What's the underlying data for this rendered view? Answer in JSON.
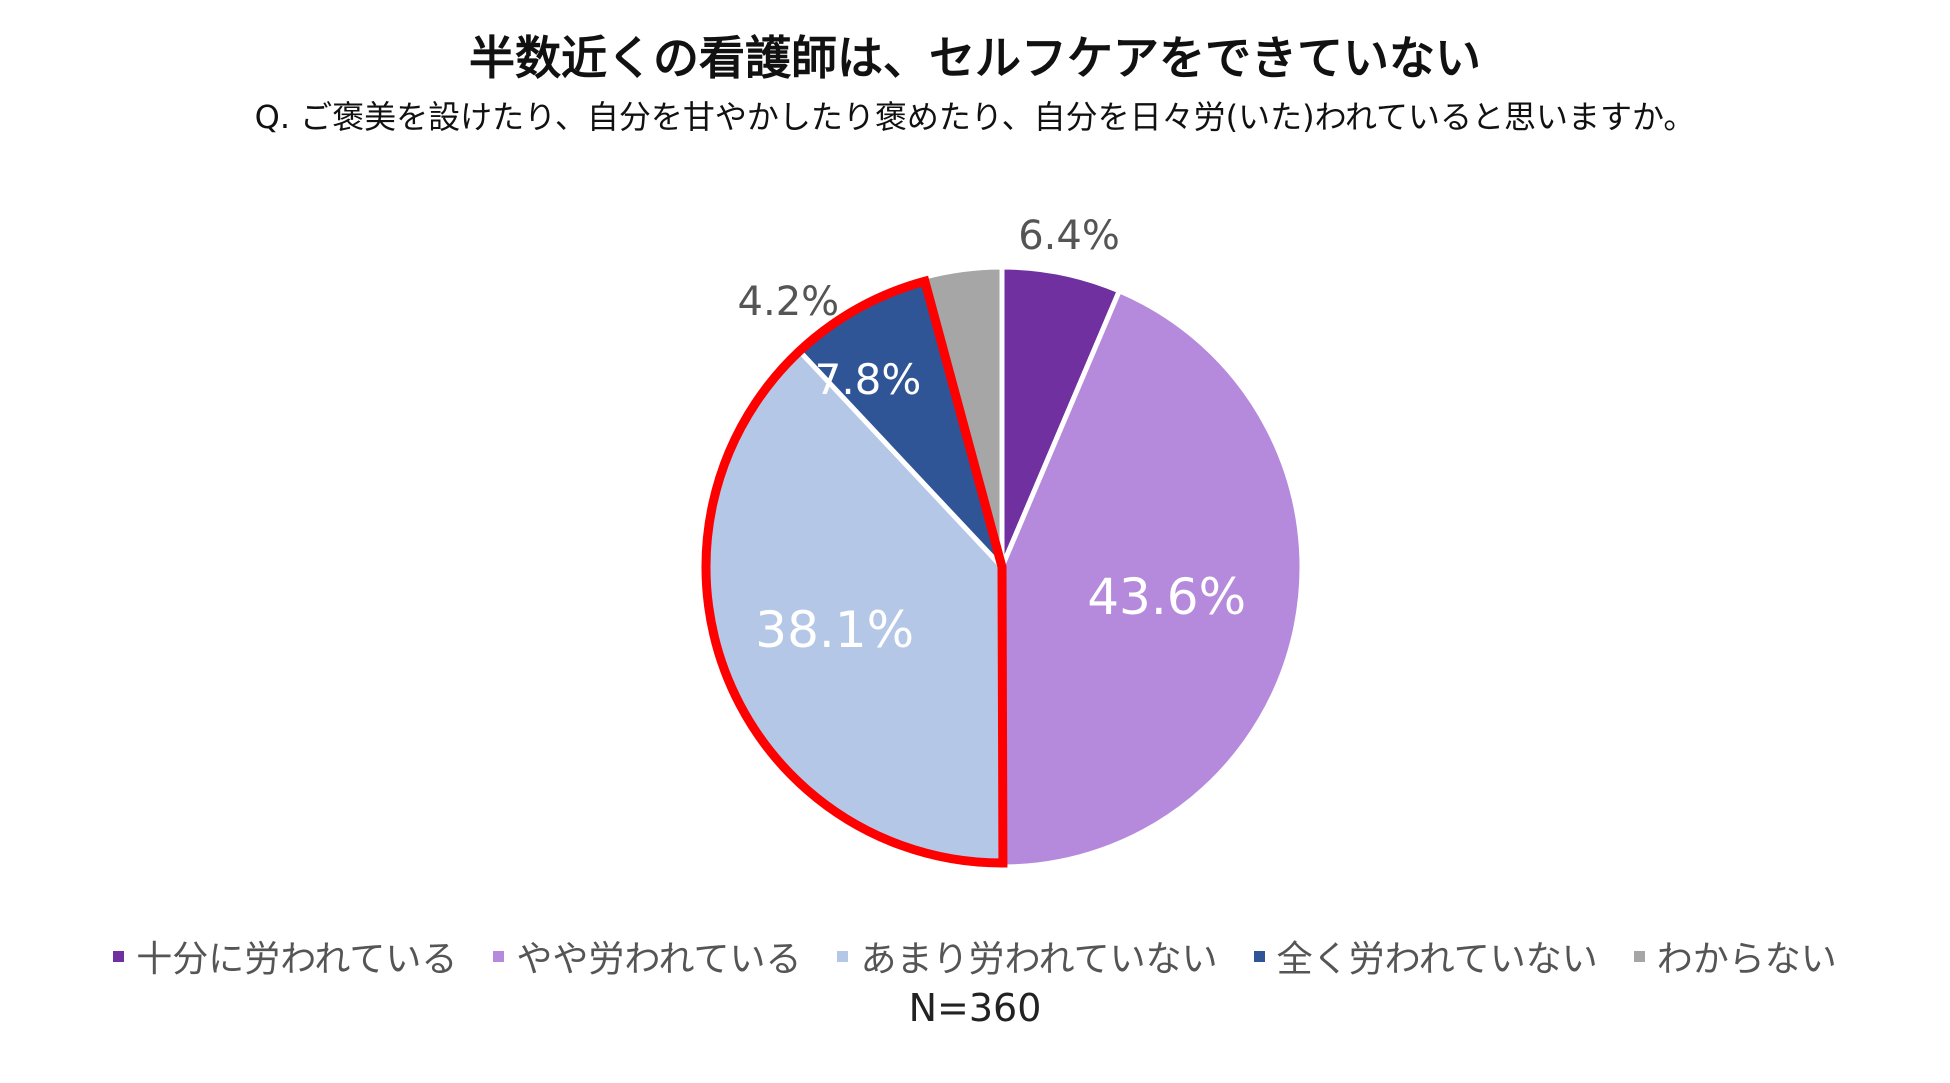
{
  "chart_data": {
    "type": "pie",
    "title": "半数近くの看護師は、セルフケアをできていない",
    "subtitle": "Q. ご褒美を設けたり、自分を甘やかしたり褒めたり、自分を日々労(いた)われていると思いますか。",
    "slices": [
      {
        "label": "十分に労われている",
        "value": 6.4,
        "value_label": "6.4%",
        "color": "#7030a0"
      },
      {
        "label": "やや労われている",
        "value": 43.6,
        "value_label": "43.6%",
        "color": "#b589db"
      },
      {
        "label": "あまり労われていない",
        "value": 38.1,
        "value_label": "38.1%",
        "color": "#b4c7e7"
      },
      {
        "label": "全く労われていない",
        "value": 7.8,
        "value_label": "7.8%",
        "color": "#2f5597"
      },
      {
        "label": "わからない",
        "value": 4.2,
        "value_label": "4.2%",
        "color": "#a6a6a6"
      }
    ],
    "highlight": {
      "slices": [
        "あまり労われていない",
        "全く労われていない"
      ],
      "color": "#ff0000"
    },
    "legend_position": "bottom",
    "sample_size": "N=360"
  }
}
